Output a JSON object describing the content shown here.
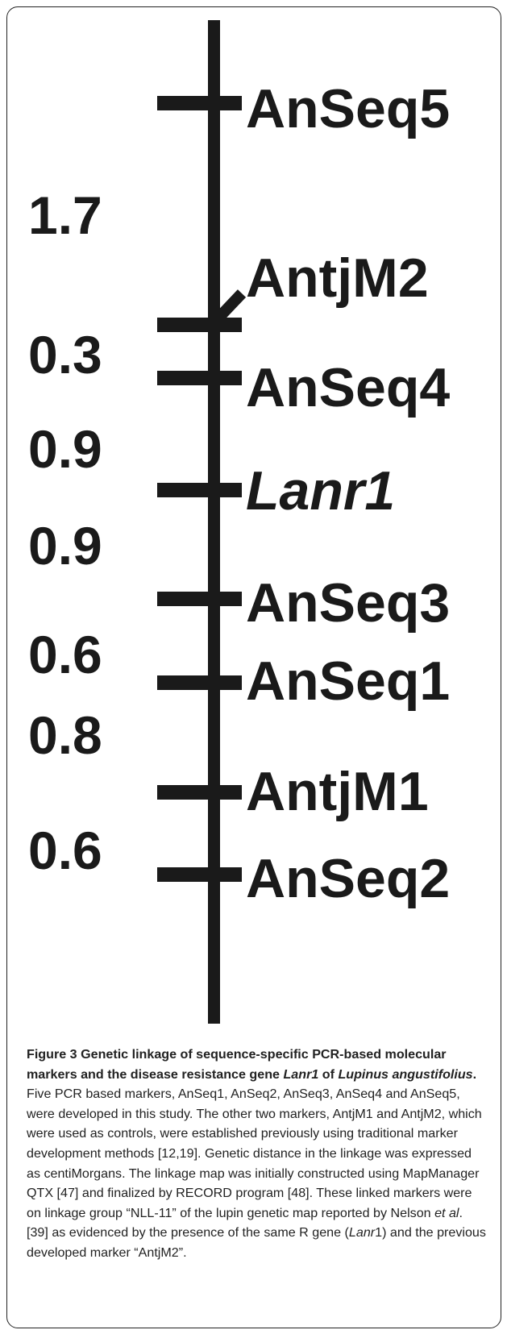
{
  "chart_data": {
    "type": "linkage_map",
    "linkage_group": "NLL-11",
    "markers": [
      {
        "name": "AnSeq5",
        "cm": 0.0,
        "italic": false
      },
      {
        "name": "AntjM2",
        "cm": 1.7,
        "italic": false
      },
      {
        "name": "AnSeq4",
        "cm": 2.0,
        "italic": false
      },
      {
        "name": "Lanr1",
        "cm": 2.9,
        "italic": true
      },
      {
        "name": "AnSeq3",
        "cm": 3.8,
        "italic": false
      },
      {
        "name": "AnSeq1",
        "cm": 4.4,
        "italic": false
      },
      {
        "name": "AntjM1",
        "cm": 5.2,
        "italic": false
      },
      {
        "name": "AnSeq2",
        "cm": 5.8,
        "italic": false
      }
    ],
    "intervals": [
      "1.7",
      "0.3",
      "0.9",
      "0.9",
      "0.6",
      "0.8",
      "0.6"
    ],
    "unit": "centiMorgans"
  },
  "caption": {
    "label": "Figure 3",
    "title_parts": [
      {
        "t": "Genetic linkage of sequence-specific PCR-based molecular markers and the disease resistance gene ",
        "i": false
      },
      {
        "t": "Lanr1",
        "i": true
      },
      {
        "t": " of ",
        "i": false
      },
      {
        "t": "Lupinus angustifolius",
        "i": true
      },
      {
        "t": ".",
        "i": false
      }
    ],
    "body_parts": [
      {
        "t": "Five PCR based markers, AnSeq1, AnSeq2, AnSeq3, AnSeq4 and AnSeq5, were developed in this study. The other two markers, AntjM1 and AntjM2, which were used as controls, were established previously using traditional marker development methods [12,19]. Genetic distance in the linkage was expressed as centiMorgans. The linkage map was initially constructed using MapManager QTX [47] and finalized by RECORD program [48]. These linked markers were on linkage group “NLL-11” of the lupin genetic map reported by Nelson ",
        "i": false
      },
      {
        "t": "et al",
        "i": true
      },
      {
        "t": ". [39] as evidenced by the presence of the same R gene (",
        "i": false
      },
      {
        "t": "Lanr",
        "i": true
      },
      {
        "t": "1) and the previous developed marker “AntjM2”.",
        "i": false
      }
    ]
  }
}
